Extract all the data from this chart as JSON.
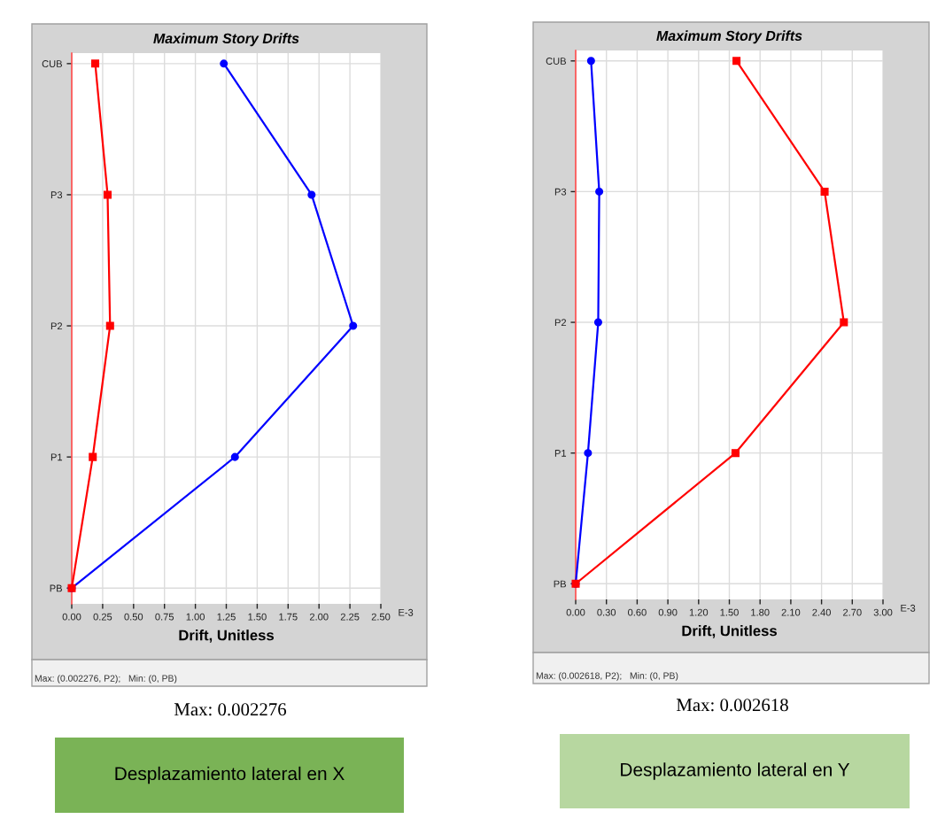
{
  "chart_data": [
    {
      "type": "line",
      "orientation": "horizontal",
      "title": "Maximum Story Drifts",
      "xlabel": "Drift, Unitless",
      "categories": [
        "CUB",
        "P3",
        "P2",
        "P1",
        "PB"
      ],
      "series": [
        {
          "color": "#0000ff",
          "marker": "circle",
          "values": [
            1.23,
            1.94,
            2.276,
            1.32,
            0
          ]
        },
        {
          "color": "#ff0000",
          "marker": "square",
          "values": [
            0.19,
            0.29,
            0.31,
            0.17,
            0
          ]
        }
      ],
      "xlim": [
        0,
        2.5
      ],
      "xticks": [
        {
          "value": 0,
          "label": "0.00"
        },
        {
          "value": 0.25,
          "label": "0.25"
        },
        {
          "value": 0.5,
          "label": "0.50"
        },
        {
          "value": 0.75,
          "label": "0.75"
        },
        {
          "value": 1,
          "label": "1.00"
        },
        {
          "value": 1.25,
          "label": "1.25"
        },
        {
          "value": 1.5,
          "label": "1.50"
        },
        {
          "value": 1.75,
          "label": "1.75"
        },
        {
          "value": 2,
          "label": "2.00"
        },
        {
          "value": 2.25,
          "label": "2.25"
        },
        {
          "value": 2.5,
          "label": "2.50"
        }
      ],
      "grid": true,
      "annotations": [
        "Max: (0.002276, P2);   Min: (0, PB)",
        "Max: 0.002276",
        "Desplazamiento lateral en X",
        "E-3"
      ]
    },
    {
      "type": "line",
      "orientation": "horizontal",
      "title": "Maximum Story Drifts",
      "xlabel": "Drift, Unitless",
      "categories": [
        "CUB",
        "P3",
        "P2",
        "P1",
        "PB"
      ],
      "series": [
        {
          "color": "#0000ff",
          "marker": "circle",
          "values": [
            0.15,
            0.23,
            0.22,
            0.12,
            0
          ]
        },
        {
          "color": "#ff0000",
          "marker": "square",
          "values": [
            1.57,
            2.43,
            2.618,
            1.56,
            0
          ]
        }
      ],
      "xlim": [
        0,
        3
      ],
      "xticks": [
        {
          "value": 0,
          "label": "0.00"
        },
        {
          "value": 0.3,
          "label": "0.30"
        },
        {
          "value": 0.6,
          "label": "0.60"
        },
        {
          "value": 0.9,
          "label": "0.90"
        },
        {
          "value": 1.2,
          "label": "1.20"
        },
        {
          "value": 1.5,
          "label": "1.50"
        },
        {
          "value": 1.8,
          "label": "1.80"
        },
        {
          "value": 2.1,
          "label": "2.10"
        },
        {
          "value": 2.4,
          "label": "2.40"
        },
        {
          "value": 2.7,
          "label": "2.70"
        },
        {
          "value": 3,
          "label": "3.00"
        }
      ],
      "grid": true,
      "annotations": [
        "Max: (0.002618, P2);   Min: (0, PB)",
        "Max: 0.002618",
        "Desplazamiento lateral en Y",
        "E-3"
      ]
    }
  ]
}
